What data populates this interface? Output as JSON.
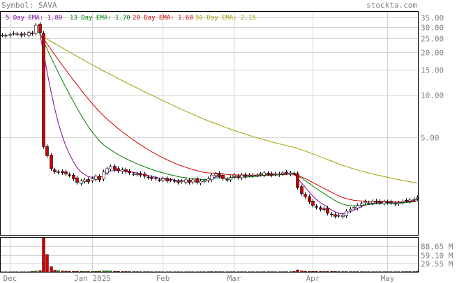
{
  "header": {
    "symbol_label": "Symbol: SAVA",
    "brand": "stockta.com"
  },
  "colors": {
    "ema5": "#8000a0",
    "ema13": "#008000",
    "ema20": "#d00000",
    "ema50": "#a0a000",
    "up": "#ffffff",
    "down": "#d00000",
    "grid": "#d3d3d3",
    "text": "#808080"
  },
  "chart_data": [
    {
      "type": "candlestick",
      "scale": "log",
      "grid": true,
      "ylim": [
        1.02,
        38.5
      ],
      "y_ticks": [
        "35.00",
        "30.00",
        "25.00",
        "20.00",
        "15.00",
        "10.00",
        "5.00"
      ],
      "y_tick_values": [
        35,
        30,
        25,
        20,
        15,
        10,
        5
      ],
      "x_ticks": [
        "Dec",
        "Jan 2025",
        "Feb",
        "Mar",
        "Apr",
        "May"
      ],
      "x_tick_index": [
        2,
        24,
        43,
        62,
        83,
        103
      ],
      "legend": [
        {
          "text": "5 Day EMA: 1.80",
          "color": "#8000a0"
        },
        {
          "text": "13 Day EMA: 1.70",
          "color": "#008000"
        },
        {
          "text": "20 Day EMA: 1.68",
          "color": "#d00000"
        },
        {
          "text": "50 Day EMA: 2.15",
          "color": "#a0a000"
        }
      ],
      "series_close": [
        26.4,
        26.1,
        26.6,
        27.1,
        26.9,
        26.3,
        26.8,
        27.5,
        27.0,
        31.0,
        27.5,
        4.3,
        3.7,
        3.0,
        2.85,
        2.85,
        2.8,
        2.75,
        2.7,
        2.55,
        2.4,
        2.45,
        2.5,
        2.42,
        2.55,
        2.65,
        2.5,
        2.85,
        3.0,
        3.1,
        2.95,
        2.9,
        2.95,
        2.85,
        2.8,
        2.75,
        2.75,
        2.7,
        2.65,
        2.6,
        2.55,
        2.55,
        2.5,
        2.55,
        2.45,
        2.5,
        2.45,
        2.4,
        2.45,
        2.5,
        2.4,
        2.5,
        2.4,
        2.45,
        2.45,
        2.55,
        2.7,
        2.75,
        2.65,
        2.55,
        2.5,
        2.6,
        2.7,
        2.6,
        2.7,
        2.65,
        2.7,
        2.7,
        2.7,
        2.75,
        2.8,
        2.75,
        2.7,
        2.75,
        2.75,
        2.8,
        2.8,
        2.8,
        2.75,
        2.2,
        2.0,
        1.9,
        1.75,
        1.65,
        1.6,
        1.55,
        1.55,
        1.45,
        1.42,
        1.38,
        1.4,
        1.4,
        1.5,
        1.55,
        1.6,
        1.65,
        1.7,
        1.75,
        1.72,
        1.76,
        1.74,
        1.72,
        1.75,
        1.73,
        1.72,
        1.7,
        1.72,
        1.76,
        1.79,
        1.8,
        1.82,
        1.88
      ],
      "ema_current": {
        "ema5": 1.8,
        "ema13": 1.7,
        "ema20": 1.68,
        "ema50": 2.15
      }
    },
    {
      "type": "bar",
      "title": "Volume",
      "y_ticks": [
        "88.65 M",
        "59.10 M",
        "29.55 M"
      ],
      "y_tick_values": [
        88.65,
        59.1,
        29.55
      ],
      "ylim": [
        0,
        118.2
      ],
      "values": [
        0.5,
        0.6,
        0.5,
        0.7,
        0.6,
        0.5,
        0.6,
        0.8,
        1.5,
        3.0,
        4.0,
        118.0,
        60.0,
        18.0,
        6.0,
        4.0,
        3.0,
        2.5,
        2.0,
        2.0,
        2.0,
        1.8,
        1.5,
        1.5,
        1.6,
        1.8,
        2.5,
        3.0,
        3.5,
        2.8,
        2.2,
        1.8,
        1.5,
        1.4,
        1.3,
        1.2,
        1.1,
        1.0,
        1.0,
        1.0,
        0.9,
        0.9,
        0.9,
        0.8,
        0.8,
        0.9,
        0.8,
        0.8,
        0.8,
        0.8,
        0.8,
        0.8,
        0.8,
        0.8,
        0.9,
        1.0,
        1.2,
        1.1,
        1.0,
        0.9,
        0.8,
        0.9,
        1.0,
        0.9,
        1.0,
        0.9,
        0.9,
        0.9,
        0.9,
        0.9,
        1.0,
        1.0,
        0.9,
        0.9,
        0.9,
        1.0,
        1.0,
        1.0,
        1.5,
        7.0,
        3.5,
        2.5,
        2.0,
        1.8,
        1.6,
        1.5,
        1.4,
        1.5,
        1.6,
        1.5,
        1.3,
        1.2,
        1.3,
        1.2,
        1.1,
        1.2,
        1.1,
        1.0,
        1.0,
        1.0,
        1.0,
        1.0,
        1.1,
        1.0,
        1.0,
        1.0,
        1.0,
        1.2,
        1.3,
        1.3,
        1.3,
        2.0
      ]
    }
  ]
}
